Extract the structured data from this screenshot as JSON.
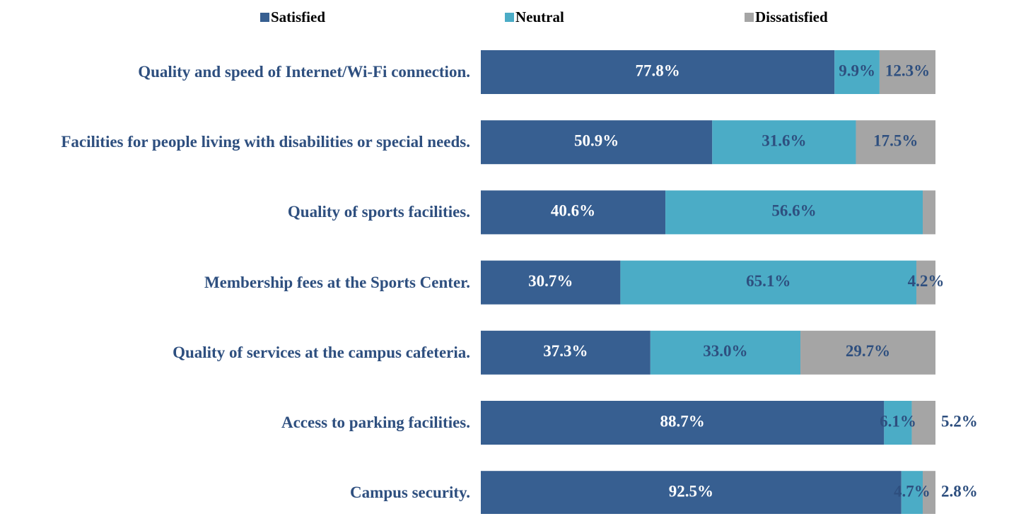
{
  "chart_data": {
    "type": "stacked-bar-horizontal",
    "categories": [
      "Quality and speed of Internet/Wi-Fi connection.",
      "Facilities for people living with disabilities or special needs.",
      "Quality of sports facilities.",
      "Membership fees at the Sports Center.",
      "Quality of services at the campus cafeteria.",
      "Access to parking facilities.",
      "Campus security."
    ],
    "xlim": [
      0,
      100
    ],
    "legend": "top",
    "series": [
      {
        "name": "Satisfied",
        "color": "#375f91",
        "label_color": "#ffffff",
        "values": [
          77.8,
          50.9,
          40.6,
          30.7,
          37.3,
          88.7,
          92.5
        ],
        "value_labels": [
          "77.8%",
          "50.9%",
          "40.6%",
          "30.7%",
          "37.3%",
          "88.7%",
          "92.5%"
        ]
      },
      {
        "name": "Neutral",
        "color": "#4bacc6",
        "label_color": "#2e4f7f",
        "values": [
          9.9,
          31.6,
          56.6,
          65.1,
          33.0,
          6.1,
          4.7
        ],
        "value_labels": [
          "9.9%",
          "31.6%",
          "56.6%",
          "65.1%",
          "33.0%",
          "6.1%",
          "4.7%"
        ]
      },
      {
        "name": "Dissatisfied",
        "color": "#a5a5a5",
        "label_color": "#2e4f7f",
        "values": [
          12.3,
          17.5,
          2.8,
          4.2,
          29.7,
          5.2,
          2.8
        ],
        "value_labels": [
          "12.3%",
          "17.5%",
          null,
          "4.2%",
          "29.7%",
          "5.2%",
          "2.8%"
        ]
      }
    ]
  }
}
